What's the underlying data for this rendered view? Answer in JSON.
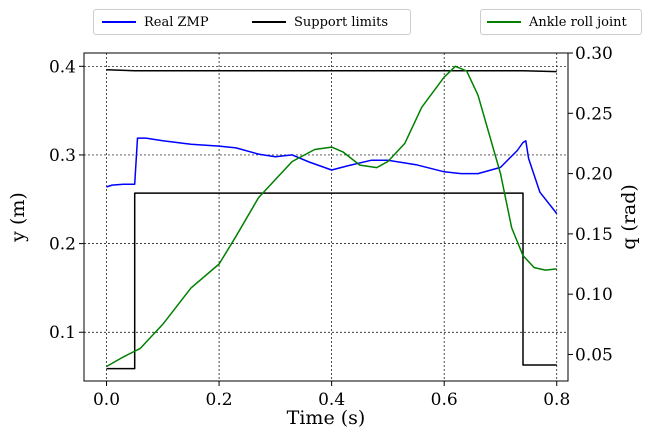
{
  "legend_left": {
    "items": [
      {
        "label": "Real ZMP",
        "color": "#0000ff"
      },
      {
        "label": "Support limits",
        "color": "#000000"
      }
    ]
  },
  "legend_right": {
    "items": [
      {
        "label": "Ankle roll joint",
        "color": "#008000"
      }
    ]
  },
  "chart_data": {
    "type": "line",
    "xlabel": "Time (s)",
    "ylabel_left": "y (m)",
    "ylabel_right": "q (rad)",
    "xlim": [
      -0.04,
      0.82
    ],
    "ylim_left": [
      0.045,
      0.415
    ],
    "ylim_right": [
      0.028,
      0.3
    ],
    "xticks": [
      "0.0",
      "0.2",
      "0.4",
      "0.6",
      "0.8"
    ],
    "yticks_left": [
      "0.1",
      "0.2",
      "0.3",
      "0.4"
    ],
    "yticks_right": [
      "0.05",
      "0.10",
      "0.15",
      "0.20",
      "0.25",
      "0.30"
    ],
    "grid": true,
    "legend_placement": "top, outside plot",
    "series": [
      {
        "name": "Real ZMP",
        "axis": "left",
        "color": "#0000ff",
        "x": [
          0.0,
          0.01,
          0.03,
          0.05,
          0.055,
          0.07,
          0.1,
          0.15,
          0.2,
          0.23,
          0.27,
          0.3,
          0.33,
          0.36,
          0.4,
          0.43,
          0.47,
          0.5,
          0.55,
          0.6,
          0.63,
          0.66,
          0.7,
          0.73,
          0.74,
          0.745,
          0.75,
          0.77,
          0.8
        ],
        "y": [
          0.264,
          0.266,
          0.267,
          0.267,
          0.319,
          0.319,
          0.316,
          0.312,
          0.31,
          0.308,
          0.301,
          0.298,
          0.3,
          0.292,
          0.283,
          0.288,
          0.294,
          0.294,
          0.289,
          0.281,
          0.279,
          0.279,
          0.286,
          0.305,
          0.314,
          0.316,
          0.296,
          0.258,
          0.234
        ]
      },
      {
        "name": "Support limits",
        "axis": "left",
        "color": "#000000",
        "x": [
          0.0,
          0.05,
          0.05,
          0.74,
          0.74,
          0.8
        ],
        "y": [
          0.059,
          0.059,
          0.257,
          0.257,
          0.063,
          0.063
        ]
      },
      {
        "name": "Support limits",
        "axis": "left",
        "color": "#000000",
        "x": [
          0.0,
          0.05,
          0.74,
          0.8
        ],
        "y": [
          0.396,
          0.395,
          0.395,
          0.394
        ]
      },
      {
        "name": "Ankle roll joint",
        "axis": "right",
        "color": "#008000",
        "x": [
          0.0,
          0.03,
          0.06,
          0.1,
          0.15,
          0.2,
          0.23,
          0.27,
          0.3,
          0.33,
          0.37,
          0.4,
          0.42,
          0.45,
          0.48,
          0.5,
          0.53,
          0.56,
          0.6,
          0.62,
          0.64,
          0.66,
          0.7,
          0.72,
          0.74,
          0.76,
          0.78,
          0.8
        ],
        "y": [
          0.04,
          0.048,
          0.055,
          0.075,
          0.105,
          0.125,
          0.148,
          0.18,
          0.195,
          0.21,
          0.22,
          0.222,
          0.218,
          0.207,
          0.205,
          0.21,
          0.225,
          0.255,
          0.28,
          0.289,
          0.285,
          0.265,
          0.2,
          0.155,
          0.132,
          0.122,
          0.12,
          0.121
        ]
      }
    ]
  }
}
